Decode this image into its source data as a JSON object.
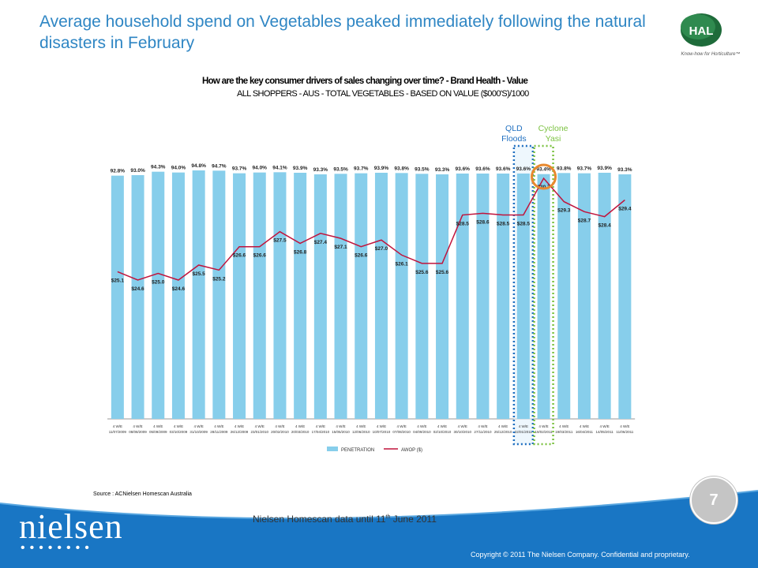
{
  "slide": {
    "headline": "Average household spend on Vegetables peaked immediately following the natural disasters in February",
    "logo_text": "HAL",
    "logo_tagline": "Know-how for Horticulture™",
    "source": "Source : ACNielsen Homescan Australia",
    "page_number": "7",
    "footnote_main": "Nielsen Homescan data until 11",
    "footnote_sup": "th",
    "footnote_tail": " June 2011",
    "brand": "nielsen",
    "brand_dots": "••••••••",
    "copyright": "Copyright © 2011 The Nielsen Company. Confidential and proprietary."
  },
  "chart_data": {
    "type": "bar",
    "title": "How are the key consumer drivers of sales changing over time? - Brand Health - Value",
    "subtitle": "ALL SHOPPERS - AUS - TOTAL VEGETABLES - BASED ON VALUE ($000'S)/1000",
    "category_prefix": "4 W/E",
    "categories": [
      "11/07/2009",
      "08/08/2009",
      "05/09/2009",
      "03/10/2009",
      "31/10/2009",
      "28/11/2009",
      "26/12/2009",
      "23/01/2010",
      "20/02/2010",
      "20/03/2010",
      "17/04/2010",
      "15/05/2010",
      "12/06/2010",
      "10/07/2010",
      "07/08/2010",
      "04/09/2010",
      "02/10/2010",
      "30/10/2010",
      "27/11/2010",
      "25/12/2010",
      "22/01/2011",
      "19/02/2011",
      "19/03/2011",
      "16/04/2011",
      "14/05/2011",
      "11/06/2011"
    ],
    "series": [
      {
        "name": "PENETRATION",
        "type": "bar",
        "color": "#87ceeb",
        "values": [
          92.8,
          93.0,
          94.3,
          94.0,
          94.8,
          94.7,
          93.7,
          94.0,
          94.1,
          93.9,
          93.3,
          93.5,
          93.7,
          93.9,
          93.8,
          93.5,
          93.3,
          93.6,
          93.6,
          93.6,
          93.6,
          93.4,
          93.8,
          93.7,
          93.9,
          93.3
        ],
        "labels": [
          "92.8%",
          "93.0%",
          "94.3%",
          "94.0%",
          "94.8%",
          "94.7%",
          "93.7%",
          "94.0%",
          "94.1%",
          "93.9%",
          "93.3%",
          "93.5%",
          "93.7%",
          "93.9%",
          "93.8%",
          "93.5%",
          "93.3%",
          "93.6%",
          "93.6%",
          "93.6%",
          "93.6%",
          "93.4%",
          "93.8%",
          "93.7%",
          "93.9%",
          "93.3%"
        ]
      },
      {
        "name": "AWOP ($)",
        "type": "line",
        "color": "#c0143c",
        "values": [
          25.1,
          24.6,
          25.0,
          24.6,
          25.5,
          25.2,
          26.6,
          26.6,
          27.5,
          26.8,
          27.4,
          27.1,
          26.6,
          27.0,
          26.1,
          25.6,
          25.6,
          28.5,
          28.6,
          28.5,
          28.5,
          30.7,
          29.3,
          28.7,
          28.4,
          29.4
        ],
        "labels": [
          "$25.1",
          "$24.6",
          "$25.0",
          "$24.6",
          "$25.5",
          "$25.2",
          "$26.6",
          "$26.6",
          "$27.5",
          "$26.8",
          "$27.4",
          "$27.1",
          "$26.6",
          "$27.0",
          "$26.1",
          "$25.6",
          "$25.6",
          "$28.5",
          "$28.6",
          "$28.5",
          "$28.5",
          "$30.7",
          "$29.3",
          "$28.7",
          "$28.4",
          "$29.4"
        ]
      }
    ],
    "annotations": [
      {
        "label": "QLD Floods",
        "category_index": 20,
        "color": "#1f6fc0"
      },
      {
        "label": "Cyclone Yasi",
        "category_index": 21,
        "color": "#7cc242"
      }
    ],
    "highlight_circle_index": 21,
    "legend_position": "bottom"
  },
  "colors": {
    "headline": "#2f86c4",
    "footer_blue": "#1976c4",
    "bar": "#87ceeb",
    "line": "#c0143c"
  }
}
